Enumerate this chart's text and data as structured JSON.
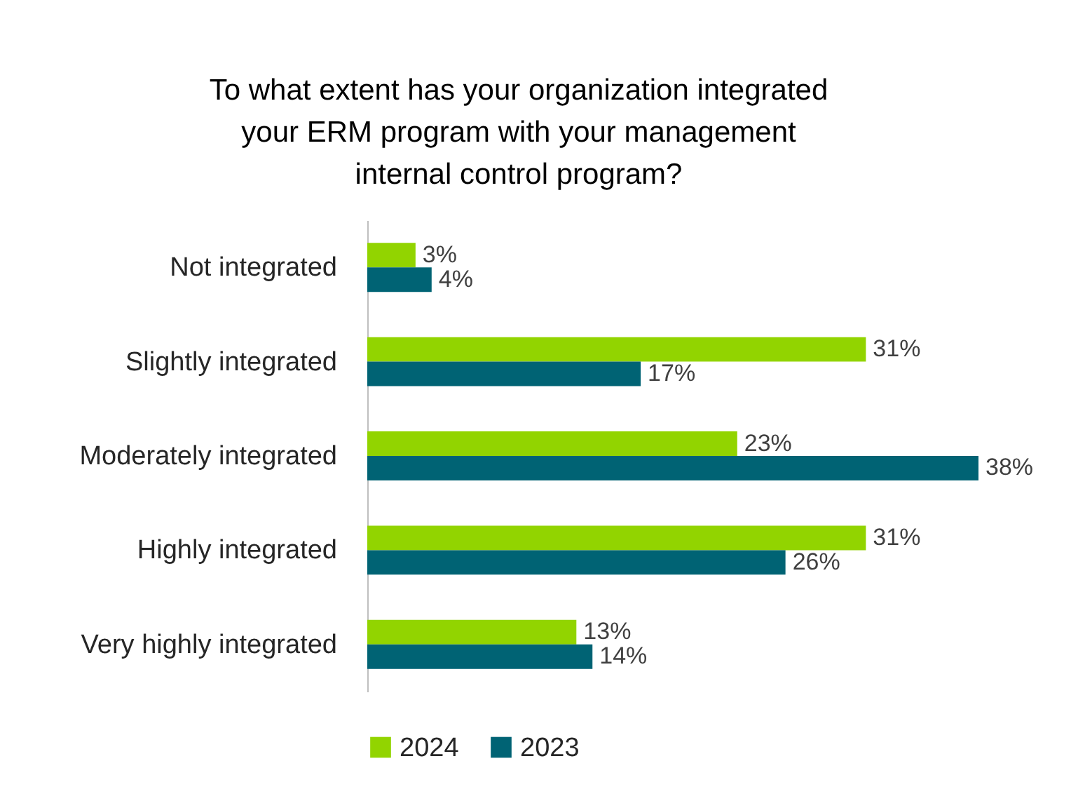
{
  "chart_data": {
    "type": "bar",
    "orientation": "horizontal",
    "title": "To what extent has your organization integrated\nyour ERM program with your management\ninternal control program?",
    "categories": [
      "Not integrated",
      "Slightly integrated",
      "Moderately integrated",
      "Highly integrated",
      "Very highly integrated"
    ],
    "series": [
      {
        "name": "2024",
        "color": "#92d400",
        "values": [
          3,
          31,
          23,
          31,
          13
        ],
        "value_labels": [
          "3%",
          "31%",
          "23%",
          "31%",
          "13%"
        ]
      },
      {
        "name": "2023",
        "color": "#006374",
        "values": [
          4,
          17,
          38,
          26,
          14
        ],
        "value_labels": [
          "4%",
          "17%",
          "38%",
          "26%",
          "14%"
        ]
      }
    ],
    "tick_labels": "y",
    "legend": "bottom"
  }
}
